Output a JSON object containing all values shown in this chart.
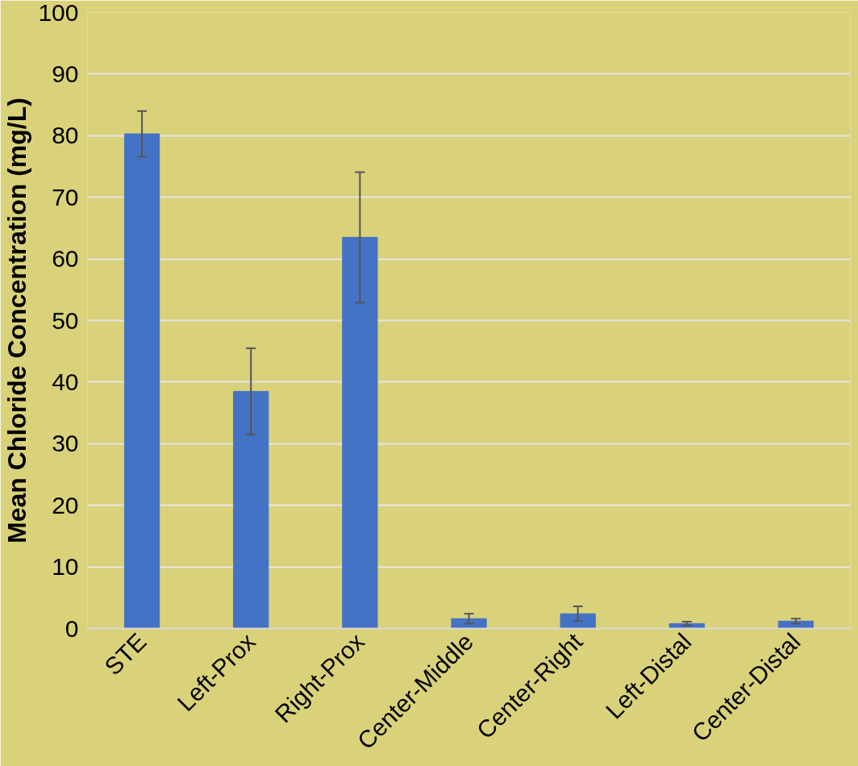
{
  "chart_data": {
    "type": "bar",
    "ylabel": "Mean Chloride Concentration (mg/L)",
    "categories": [
      "STE",
      "Left-Prox",
      "Right-Prox",
      "Center-Middle",
      "Center-Right",
      "Left-Distal",
      "Center-Distal"
    ],
    "values": [
      80.3,
      38.5,
      63.5,
      1.6,
      2.4,
      0.8,
      1.2
    ],
    "errors": [
      3.7,
      7,
      10.6,
      0.8,
      1.2,
      0.3,
      0.4
    ],
    "color": "#4472c4",
    "ylim": [
      0,
      100
    ],
    "yticks": [
      0,
      10,
      20,
      30,
      40,
      50,
      60,
      70,
      80,
      90,
      100
    ],
    "grid": "y"
  }
}
